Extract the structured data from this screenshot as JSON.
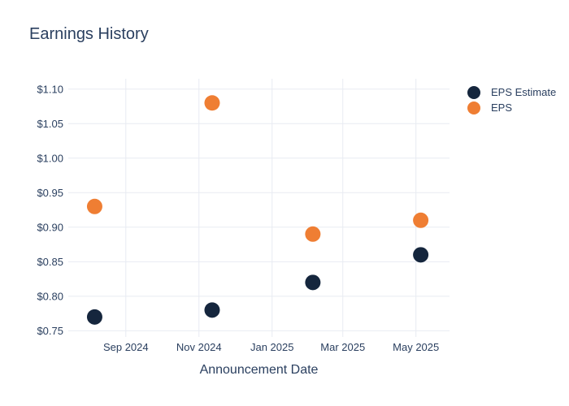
{
  "chart_data": {
    "type": "scatter",
    "title": "Earnings History",
    "xlabel": "Announcement Date",
    "ylabel": "",
    "x": [
      "2024-08-06",
      "2024-11-12",
      "2025-02-04",
      "2025-05-05"
    ],
    "series": [
      {
        "name": "EPS Estimate",
        "color": "#15263d",
        "values": [
          0.77,
          0.78,
          0.82,
          0.86
        ]
      },
      {
        "name": "EPS",
        "color": "#ef7e33",
        "values": [
          0.93,
          1.08,
          0.89,
          0.91
        ]
      }
    ],
    "x_ticks": [
      {
        "date": "2024-09-01",
        "label": "Sep 2024"
      },
      {
        "date": "2024-11-01",
        "label": "Nov 2024"
      },
      {
        "date": "2025-01-01",
        "label": "Jan 2025"
      },
      {
        "date": "2025-03-01",
        "label": "Mar 2025"
      },
      {
        "date": "2025-05-01",
        "label": "May 2025"
      }
    ],
    "y_ticks": [
      {
        "value": 0.75,
        "label": "$0.75"
      },
      {
        "value": 0.8,
        "label": "$0.80"
      },
      {
        "value": 0.85,
        "label": "$0.85"
      },
      {
        "value": 0.9,
        "label": "$0.90"
      },
      {
        "value": 0.95,
        "label": "$0.95"
      },
      {
        "value": 1.0,
        "label": "$1.00"
      },
      {
        "value": 1.05,
        "label": "$1.05"
      },
      {
        "value": 1.1,
        "label": "$1.10"
      }
    ],
    "xlim": [
      "2024-07-15",
      "2025-05-29"
    ],
    "ylim": [
      0.741,
      1.115
    ],
    "grid": true,
    "legend_position": "right",
    "marker_size": 19
  },
  "style": {
    "background": "#ffffff",
    "text_color": "#2a3f5f",
    "grid_color": "#e8ebf2",
    "navy": "#15263d",
    "orange": "#ef7e33"
  }
}
